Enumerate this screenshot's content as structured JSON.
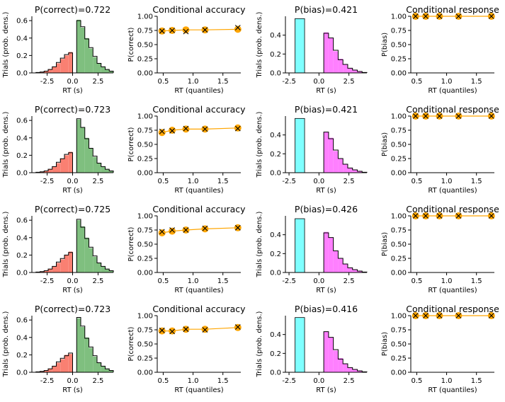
{
  "colors": {
    "error_fill": "#fa8072",
    "correct_fill": "#7fbf7f",
    "bias_neg_fill": "#7fffff",
    "bias_pos_fill": "#ff7fff",
    "marker": "#ffa500",
    "outline": "#000000"
  },
  "labels": {
    "rt_s": "RT (s)",
    "rt_quantiles": "RT (quantiles)",
    "trials": "Trials (prob. dens.)",
    "p_correct": "P(correct)",
    "p_bias": "P(bias)",
    "cond_acc": "Conditional accuracy",
    "cond_resp": "Conditional response"
  },
  "chart_data": [
    {
      "row": 0,
      "hist": {
        "type": "bar",
        "title": "P(correct)=0.722",
        "xlabel": "RT (s)",
        "ylabel": "Trials (prob. dens.)",
        "xlim": [
          -4,
          4
        ],
        "ylim": [
          0,
          0.65
        ],
        "xticks": [
          "-2.5",
          "0.0",
          "2.5"
        ],
        "yticks": [
          "0.0",
          "0.2",
          "0.4",
          "0.6"
        ],
        "bin_width": 0.4,
        "negative_bins": {
          "lefts": [
            -4.0,
            -3.6,
            -3.2,
            -2.8,
            -2.4,
            -2.0,
            -1.6,
            -1.2,
            -0.8,
            -0.4
          ],
          "simulated": [
            0.0,
            0.005,
            0.01,
            0.02,
            0.04,
            0.07,
            0.11,
            0.16,
            0.2,
            0.24
          ],
          "observed": [
            0.0,
            0.005,
            0.01,
            0.02,
            0.04,
            0.07,
            0.12,
            0.17,
            0.21,
            0.23
          ]
        },
        "positive_bins": {
          "lefts": [
            0.4,
            0.8,
            1.2,
            1.6,
            2.0,
            2.4,
            2.8,
            3.2,
            3.6
          ],
          "simulated": [
            0.61,
            0.52,
            0.4,
            0.28,
            0.18,
            0.11,
            0.07,
            0.04,
            0.02
          ],
          "observed": [
            0.6,
            0.53,
            0.39,
            0.29,
            0.19,
            0.11,
            0.07,
            0.04,
            0.02
          ]
        }
      },
      "cond_acc": {
        "type": "line",
        "title": "Conditional accuracy",
        "xlabel": "RT (quantiles)",
        "ylabel": "P(correct)",
        "xlim": [
          0.4,
          1.8
        ],
        "ylim": [
          0,
          1
        ],
        "xticks": [
          "0.5",
          "1.0",
          "1.5"
        ],
        "yticks": [
          "0.00",
          "0.25",
          "0.50",
          "0.75",
          "1.00"
        ],
        "x": [
          0.48,
          0.65,
          0.88,
          1.2,
          1.75
        ],
        "model": [
          0.74,
          0.75,
          0.76,
          0.76,
          0.77
        ],
        "data": [
          0.74,
          0.75,
          0.73,
          0.76,
          0.8
        ]
      },
      "bias_hist": {
        "type": "bar",
        "title": "P(bias)=0.421",
        "xlabel": "RT (s)",
        "ylabel": "Trials (prob. dens.)",
        "xlim": [
          -2.8,
          4
        ],
        "ylim": [
          0,
          0.6
        ],
        "xticks": [
          "-2.5",
          "0.0",
          "2.5"
        ],
        "yticks": [
          "0.0",
          "0.2",
          "0.4"
        ],
        "bin_width": 0.4,
        "cyan_bar": {
          "left": -2.0,
          "width": 0.8,
          "value": 0.575
        },
        "positive_bins": {
          "lefts": [
            0.4,
            0.8,
            1.2,
            1.6,
            2.0,
            2.4,
            2.8,
            3.2,
            3.6
          ],
          "simulated": [
            0.43,
            0.37,
            0.23,
            0.15,
            0.09,
            0.05,
            0.03,
            0.015,
            0.005
          ],
          "observed": [
            0.42,
            0.37,
            0.24,
            0.14,
            0.09,
            0.05,
            0.03,
            0.015,
            0.005
          ]
        }
      },
      "cond_resp": {
        "type": "line",
        "title": "Conditional response",
        "xlabel": "RT (quantiles)",
        "ylabel": "P(bias)",
        "xlim": [
          0.4,
          1.8
        ],
        "ylim": [
          0,
          1
        ],
        "xticks": [
          "0.5",
          "1.0",
          "1.5"
        ],
        "yticks": [
          "0.00",
          "0.25",
          "0.50",
          "0.75",
          "1.00"
        ],
        "x": [
          0.48,
          0.65,
          0.88,
          1.2,
          1.75
        ],
        "model": [
          1.0,
          1.0,
          1.0,
          1.0,
          1.0
        ],
        "data": [
          1.0,
          1.0,
          1.0,
          1.0,
          1.0
        ]
      }
    },
    {
      "row": 1,
      "hist": {
        "type": "bar",
        "title": "P(correct)=0.723",
        "xlabel": "RT (s)",
        "ylabel": "Trials (prob. dens.)",
        "xlim": [
          -4,
          4
        ],
        "ylim": [
          0,
          0.65
        ],
        "xticks": [
          "-2.5",
          "0.0",
          "2.5"
        ],
        "yticks": [
          "0.0",
          "0.2",
          "0.4",
          "0.6"
        ],
        "bin_width": 0.4,
        "negative_bins": {
          "lefts": [
            -4.0,
            -3.6,
            -3.2,
            -2.8,
            -2.4,
            -2.0,
            -1.6,
            -1.2,
            -0.8,
            -0.4
          ],
          "simulated": [
            0.0,
            0.005,
            0.01,
            0.02,
            0.04,
            0.07,
            0.11,
            0.16,
            0.2,
            0.24
          ],
          "observed": [
            0.0,
            0.005,
            0.01,
            0.02,
            0.04,
            0.07,
            0.12,
            0.16,
            0.21,
            0.23
          ]
        },
        "positive_bins": {
          "lefts": [
            0.4,
            0.8,
            1.2,
            1.6,
            2.0,
            2.4,
            2.8,
            3.2,
            3.6
          ],
          "simulated": [
            0.61,
            0.52,
            0.4,
            0.28,
            0.18,
            0.11,
            0.07,
            0.04,
            0.02
          ],
          "observed": [
            0.62,
            0.52,
            0.39,
            0.28,
            0.19,
            0.11,
            0.07,
            0.04,
            0.02
          ]
        }
      },
      "cond_acc": {
        "type": "line",
        "title": "Conditional accuracy",
        "xlabel": "RT (quantiles)",
        "ylabel": "P(correct)",
        "xlim": [
          0.4,
          1.8
        ],
        "ylim": [
          0,
          1
        ],
        "xticks": [
          "0.5",
          "1.0",
          "1.5"
        ],
        "yticks": [
          "0.00",
          "0.25",
          "0.50",
          "0.75",
          "1.00"
        ],
        "x": [
          0.48,
          0.65,
          0.88,
          1.2,
          1.75
        ],
        "model": [
          0.71,
          0.75,
          0.77,
          0.77,
          0.79
        ],
        "data": [
          0.73,
          0.74,
          0.78,
          0.77,
          0.78
        ]
      },
      "bias_hist": {
        "type": "bar",
        "title": "P(bias)=0.421",
        "xlabel": "RT (s)",
        "ylabel": "Trials (prob. dens.)",
        "xlim": [
          -2.8,
          4
        ],
        "ylim": [
          0,
          0.6
        ],
        "xticks": [
          "-2.5",
          "0.0",
          "2.5"
        ],
        "yticks": [
          "0.0",
          "0.2",
          "0.4"
        ],
        "bin_width": 0.4,
        "cyan_bar": {
          "left": -2.0,
          "width": 0.8,
          "value": 0.575
        },
        "positive_bins": {
          "lefts": [
            0.4,
            0.8,
            1.2,
            1.6,
            2.0,
            2.4,
            2.8,
            3.2,
            3.6
          ],
          "simulated": [
            0.43,
            0.37,
            0.23,
            0.15,
            0.09,
            0.05,
            0.03,
            0.015,
            0.005
          ],
          "observed": [
            0.43,
            0.36,
            0.24,
            0.15,
            0.09,
            0.05,
            0.03,
            0.015,
            0.005
          ]
        }
      },
      "cond_resp": {
        "type": "line",
        "title": "Conditional response",
        "xlabel": "RT (quantiles)",
        "ylabel": "P(bias)",
        "xlim": [
          0.4,
          1.8
        ],
        "ylim": [
          0,
          1
        ],
        "xticks": [
          "0.5",
          "1.0",
          "1.5"
        ],
        "yticks": [
          "0.00",
          "0.25",
          "0.50",
          "0.75",
          "1.00"
        ],
        "x": [
          0.48,
          0.65,
          0.88,
          1.2,
          1.75
        ],
        "model": [
          1.0,
          1.0,
          1.0,
          1.0,
          1.0
        ],
        "data": [
          1.0,
          1.0,
          1.0,
          1.0,
          1.0
        ]
      }
    },
    {
      "row": 2,
      "hist": {
        "type": "bar",
        "title": "P(correct)=0.725",
        "xlabel": "RT (s)",
        "ylabel": "Trials (prob. dens.)",
        "xlim": [
          -4,
          4
        ],
        "ylim": [
          0,
          0.65
        ],
        "xticks": [
          "-2.5",
          "0.0",
          "2.5"
        ],
        "yticks": [
          "0.0",
          "0.2",
          "0.4",
          "0.6"
        ],
        "bin_width": 0.4,
        "negative_bins": {
          "lefts": [
            -4.0,
            -3.6,
            -3.2,
            -2.8,
            -2.4,
            -2.0,
            -1.6,
            -1.2,
            -0.8,
            -0.4
          ],
          "simulated": [
            0.0,
            0.005,
            0.01,
            0.02,
            0.04,
            0.07,
            0.11,
            0.15,
            0.2,
            0.24
          ],
          "observed": [
            0.0,
            0.005,
            0.01,
            0.02,
            0.04,
            0.07,
            0.12,
            0.16,
            0.2,
            0.23
          ]
        },
        "positive_bins": {
          "lefts": [
            0.4,
            0.8,
            1.2,
            1.6,
            2.0,
            2.4,
            2.8,
            3.2,
            3.6
          ],
          "simulated": [
            0.6,
            0.53,
            0.4,
            0.28,
            0.18,
            0.11,
            0.07,
            0.04,
            0.02
          ],
          "observed": [
            0.61,
            0.52,
            0.39,
            0.29,
            0.19,
            0.11,
            0.07,
            0.04,
            0.02
          ]
        }
      },
      "cond_acc": {
        "type": "line",
        "title": "Conditional accuracy",
        "xlabel": "RT (quantiles)",
        "ylabel": "P(correct)",
        "xlim": [
          0.4,
          1.8
        ],
        "ylim": [
          0,
          1
        ],
        "xticks": [
          "0.5",
          "1.0",
          "1.5"
        ],
        "yticks": [
          "0.00",
          "0.25",
          "0.50",
          "0.75",
          "1.00"
        ],
        "x": [
          0.48,
          0.65,
          0.88,
          1.2,
          1.75
        ],
        "model": [
          0.7,
          0.73,
          0.75,
          0.77,
          0.79
        ],
        "data": [
          0.72,
          0.75,
          0.75,
          0.78,
          0.79
        ]
      },
      "bias_hist": {
        "type": "bar",
        "title": "P(bias)=0.426",
        "xlabel": "RT (s)",
        "ylabel": "Trials (prob. dens.)",
        "xlim": [
          -2.8,
          4
        ],
        "ylim": [
          0,
          0.6
        ],
        "xticks": [
          "-2.5",
          "0.0",
          "2.5"
        ],
        "yticks": [
          "0.0",
          "0.2",
          "0.4"
        ],
        "bin_width": 0.4,
        "cyan_bar": {
          "left": -2.0,
          "width": 0.8,
          "value": 0.57
        },
        "positive_bins": {
          "lefts": [
            0.4,
            0.8,
            1.2,
            1.6,
            2.0,
            2.4,
            2.8,
            3.2,
            3.6
          ],
          "simulated": [
            0.43,
            0.37,
            0.23,
            0.15,
            0.09,
            0.05,
            0.03,
            0.015,
            0.005
          ],
          "observed": [
            0.42,
            0.37,
            0.23,
            0.15,
            0.09,
            0.05,
            0.03,
            0.015,
            0.005
          ]
        }
      },
      "cond_resp": {
        "type": "line",
        "title": "Conditional response",
        "xlabel": "RT (quantiles)",
        "ylabel": "P(bias)",
        "xlim": [
          0.4,
          1.8
        ],
        "ylim": [
          0,
          1
        ],
        "xticks": [
          "0.5",
          "1.0",
          "1.5"
        ],
        "yticks": [
          "0.00",
          "0.25",
          "0.50",
          "0.75",
          "1.00"
        ],
        "x": [
          0.48,
          0.65,
          0.88,
          1.2,
          1.75
        ],
        "model": [
          1.0,
          1.0,
          1.0,
          1.0,
          1.0
        ],
        "data": [
          1.0,
          1.0,
          1.0,
          1.0,
          1.0
        ]
      }
    },
    {
      "row": 3,
      "hist": {
        "type": "bar",
        "title": "P(correct)=0.723",
        "xlabel": "RT (s)",
        "ylabel": "Trials (prob. dens.)",
        "xlim": [
          -4,
          4
        ],
        "ylim": [
          0,
          0.65
        ],
        "xticks": [
          "-2.5",
          "0.0",
          "2.5"
        ],
        "yticks": [
          "0.0",
          "0.2",
          "0.4",
          "0.6"
        ],
        "bin_width": 0.4,
        "negative_bins": {
          "lefts": [
            -4.0,
            -3.6,
            -3.2,
            -2.8,
            -2.4,
            -2.0,
            -1.6,
            -1.2,
            -0.8,
            -0.4
          ],
          "simulated": [
            0.0,
            0.005,
            0.01,
            0.02,
            0.04,
            0.07,
            0.11,
            0.15,
            0.2,
            0.21
          ],
          "observed": [
            0.0,
            0.005,
            0.01,
            0.02,
            0.04,
            0.07,
            0.12,
            0.16,
            0.19,
            0.22
          ]
        },
        "positive_bins": {
          "lefts": [
            0.4,
            0.8,
            1.2,
            1.6,
            2.0,
            2.4,
            2.8,
            3.2,
            3.6
          ],
          "simulated": [
            0.62,
            0.52,
            0.4,
            0.28,
            0.18,
            0.11,
            0.07,
            0.04,
            0.02
          ],
          "observed": [
            0.63,
            0.53,
            0.39,
            0.29,
            0.19,
            0.11,
            0.07,
            0.04,
            0.02
          ]
        }
      },
      "cond_acc": {
        "type": "line",
        "title": "Conditional accuracy",
        "xlabel": "RT (quantiles)",
        "ylabel": "P(correct)",
        "xlim": [
          0.4,
          1.8
        ],
        "ylim": [
          0,
          1
        ],
        "xticks": [
          "0.5",
          "1.0",
          "1.5"
        ],
        "yticks": [
          "0.00",
          "0.25",
          "0.50",
          "0.75",
          "1.00"
        ],
        "x": [
          0.48,
          0.65,
          0.88,
          1.2,
          1.75
        ],
        "model": [
          0.73,
          0.73,
          0.76,
          0.76,
          0.79
        ],
        "data": [
          0.74,
          0.72,
          0.76,
          0.75,
          0.8
        ]
      },
      "bias_hist": {
        "type": "bar",
        "title": "P(bias)=0.416",
        "xlabel": "RT (s)",
        "ylabel": "Trials (prob. dens.)",
        "xlim": [
          -2.8,
          4
        ],
        "ylim": [
          0,
          0.6
        ],
        "xticks": [
          "-2.5",
          "0.0",
          "2.5"
        ],
        "yticks": [
          "0.0",
          "0.2",
          "0.4"
        ],
        "bin_width": 0.4,
        "cyan_bar": {
          "left": -2.0,
          "width": 0.8,
          "value": 0.58
        },
        "positive_bins": {
          "lefts": [
            0.4,
            0.8,
            1.2,
            1.6,
            2.0,
            2.4,
            2.8,
            3.2,
            3.6
          ],
          "simulated": [
            0.43,
            0.37,
            0.23,
            0.15,
            0.09,
            0.05,
            0.03,
            0.015,
            0.005
          ],
          "observed": [
            0.43,
            0.37,
            0.24,
            0.14,
            0.09,
            0.05,
            0.03,
            0.015,
            0.005
          ]
        }
      },
      "cond_resp": {
        "type": "line",
        "title": "Conditional response",
        "xlabel": "RT (quantiles)",
        "ylabel": "P(bias)",
        "xlim": [
          0.4,
          1.8
        ],
        "ylim": [
          0,
          1
        ],
        "xticks": [
          "0.5",
          "1.0",
          "1.5"
        ],
        "yticks": [
          "0.00",
          "0.25",
          "0.50",
          "0.75",
          "1.00"
        ],
        "x": [
          0.48,
          0.65,
          0.88,
          1.2,
          1.75
        ],
        "model": [
          1.0,
          1.0,
          1.0,
          1.0,
          1.0
        ],
        "data": [
          1.0,
          1.0,
          1.0,
          1.0,
          1.0
        ]
      }
    }
  ]
}
